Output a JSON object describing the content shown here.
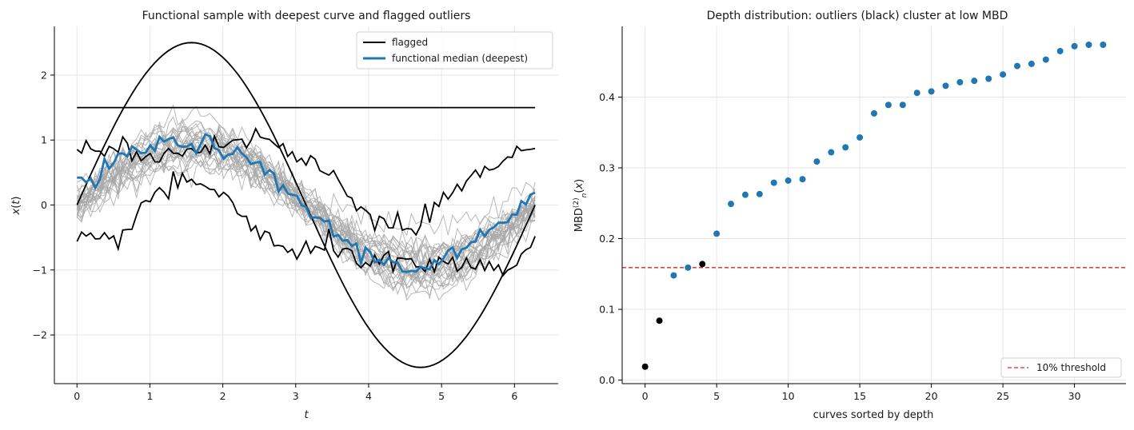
{
  "chart_data": [
    {
      "type": "line",
      "title": "Functional sample with deepest curve and flagged outliers",
      "xlabel": "t",
      "ylabel": "x(t)",
      "xlim": [
        -0.31,
        6.6
      ],
      "ylim": [
        -2.75,
        2.75
      ],
      "xticks": [
        0,
        1,
        2,
        3,
        4,
        5,
        6
      ],
      "yticks": [
        -2,
        -1,
        0,
        1,
        2
      ],
      "xtick_labels": [
        "0",
        "1",
        "2",
        "3",
        "4",
        "5",
        "6"
      ],
      "ytick_labels": [
        "−2",
        "−1",
        "0",
        "1",
        "2"
      ],
      "grid": true,
      "legend_position": "top-right",
      "legend": [
        {
          "label": "flagged",
          "color": "#000000"
        },
        {
          "label": "functional median (deepest)",
          "color": "#1f77b4"
        }
      ],
      "colors": {
        "sample": "#a6a6a6",
        "flagged": "#000000",
        "median": "#1f77b4"
      },
      "t_range": [
        0,
        6.283
      ],
      "n_sample_curves": 28,
      "flagged_curves": [
        {
          "desc": "amplitude",
          "formula": "2.5*sin(t)"
        },
        {
          "desc": "constant",
          "value": 1.5
        },
        {
          "desc": "shift-up",
          "t": [
            0,
            0.5,
            1,
            1.5,
            2,
            2.5,
            3,
            3.5,
            4,
            4.5,
            5,
            5.5,
            6,
            6.283
          ],
          "y": [
            0.9,
            0.9,
            0.75,
            0.85,
            0.95,
            1.05,
            0.75,
            0.45,
            -0.15,
            -0.35,
            0.05,
            0.45,
            0.7,
            0.82
          ]
        },
        {
          "desc": "shift-down",
          "t": [
            0,
            0.5,
            1,
            1.5,
            2,
            2.5,
            3,
            3.5,
            4,
            4.5,
            5,
            5.5,
            6,
            6.283
          ],
          "y": [
            -0.6,
            -0.55,
            0.1,
            0.35,
            0.2,
            -0.45,
            -0.8,
            -0.6,
            -0.85,
            -0.95,
            -0.95,
            -1.0,
            -0.95,
            -0.55
          ]
        }
      ],
      "median_curve": {
        "t": [
          0,
          0.25,
          0.5,
          0.75,
          1,
          1.25,
          1.5,
          1.75,
          2,
          2.25,
          2.5,
          2.75,
          3,
          3.25,
          3.5,
          3.75,
          4,
          4.25,
          4.5,
          4.75,
          5,
          5.25,
          5.5,
          5.75,
          6,
          6.283
        ],
        "y": [
          0.35,
          0.4,
          0.65,
          0.8,
          0.88,
          0.95,
          0.98,
          0.95,
          0.85,
          0.72,
          0.55,
          0.35,
          0.1,
          -0.15,
          -0.4,
          -0.6,
          -0.8,
          -0.88,
          -0.95,
          -0.95,
          -0.85,
          -0.7,
          -0.55,
          -0.35,
          -0.15,
          0.15
        ]
      }
    },
    {
      "type": "scatter",
      "title": "Depth distribution: outliers (black) cluster at low MBD",
      "xlabel": "curves sorted by depth",
      "ylabel": "MBD(2)n(x)",
      "xlim": [
        -1.6,
        33.6
      ],
      "ylim": [
        -0.005,
        0.5
      ],
      "xticks": [
        0,
        5,
        10,
        15,
        20,
        25,
        30
      ],
      "yticks": [
        0.0,
        0.1,
        0.2,
        0.3,
        0.4
      ],
      "xtick_labels": [
        "0",
        "5",
        "10",
        "15",
        "20",
        "25",
        "30"
      ],
      "ytick_labels": [
        "0.0",
        "0.1",
        "0.2",
        "0.3",
        "0.4"
      ],
      "grid": true,
      "legend_position": "bottom-right",
      "legend": [
        {
          "label": "10% threshold",
          "color": "#d62728"
        }
      ],
      "threshold": 0.159,
      "colors": {
        "normal": "#1f77b4",
        "outlier": "#000000",
        "threshold": "#d62728"
      },
      "points": [
        {
          "x": 0,
          "y": 0.019,
          "outlier": true
        },
        {
          "x": 1,
          "y": 0.084,
          "outlier": true
        },
        {
          "x": 2,
          "y": 0.148,
          "outlier": false
        },
        {
          "x": 3,
          "y": 0.159,
          "outlier": false
        },
        {
          "x": 4,
          "y": 0.164,
          "outlier": true
        },
        {
          "x": 5,
          "y": 0.207,
          "outlier": false
        },
        {
          "x": 6,
          "y": 0.249,
          "outlier": false
        },
        {
          "x": 7,
          "y": 0.262,
          "outlier": false
        },
        {
          "x": 8,
          "y": 0.263,
          "outlier": false
        },
        {
          "x": 9,
          "y": 0.279,
          "outlier": false
        },
        {
          "x": 10,
          "y": 0.282,
          "outlier": false
        },
        {
          "x": 11,
          "y": 0.284,
          "outlier": false
        },
        {
          "x": 12,
          "y": 0.309,
          "outlier": false
        },
        {
          "x": 13,
          "y": 0.322,
          "outlier": false
        },
        {
          "x": 14,
          "y": 0.329,
          "outlier": false
        },
        {
          "x": 15,
          "y": 0.343,
          "outlier": false
        },
        {
          "x": 16,
          "y": 0.377,
          "outlier": false
        },
        {
          "x": 17,
          "y": 0.389,
          "outlier": false
        },
        {
          "x": 18,
          "y": 0.389,
          "outlier": false
        },
        {
          "x": 19,
          "y": 0.406,
          "outlier": false
        },
        {
          "x": 20,
          "y": 0.408,
          "outlier": false
        },
        {
          "x": 21,
          "y": 0.416,
          "outlier": false
        },
        {
          "x": 22,
          "y": 0.421,
          "outlier": false
        },
        {
          "x": 23,
          "y": 0.423,
          "outlier": false
        },
        {
          "x": 24,
          "y": 0.426,
          "outlier": false
        },
        {
          "x": 25,
          "y": 0.432,
          "outlier": false
        },
        {
          "x": 26,
          "y": 0.444,
          "outlier": false
        },
        {
          "x": 27,
          "y": 0.447,
          "outlier": false
        },
        {
          "x": 28,
          "y": 0.453,
          "outlier": false
        },
        {
          "x": 29,
          "y": 0.465,
          "outlier": false
        },
        {
          "x": 30,
          "y": 0.472,
          "outlier": false
        },
        {
          "x": 31,
          "y": 0.474,
          "outlier": false
        },
        {
          "x": 32,
          "y": 0.474,
          "outlier": false
        }
      ]
    }
  ]
}
